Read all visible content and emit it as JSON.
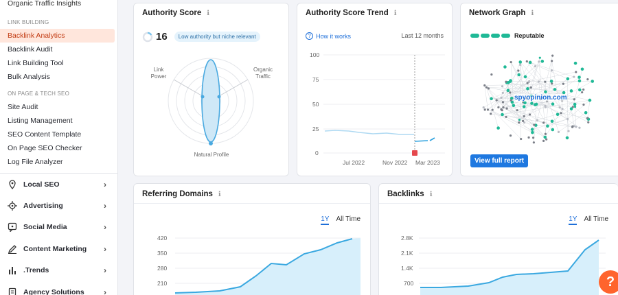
{
  "sidebar": {
    "top_item": "Organic Traffic Insights",
    "link_building_header": "LINK BUILDING",
    "link_building_items": [
      "Backlink Analytics",
      "Backlink Audit",
      "Link Building Tool",
      "Bulk Analysis"
    ],
    "onpage_header": "ON PAGE & TECH SEO",
    "onpage_items": [
      "Site Audit",
      "Listing Management",
      "SEO Content Template",
      "On Page SEO Checker",
      "Log File Analyzer"
    ],
    "main_items": [
      {
        "label": "Local SEO",
        "icon": "location-pin-icon"
      },
      {
        "label": "Advertising",
        "icon": "target-icon"
      },
      {
        "label": "Social Media",
        "icon": "chat-icon"
      },
      {
        "label": "Content Marketing",
        "icon": "pencil-icon"
      },
      {
        "label": ".Trends",
        "icon": "bar-chart-icon"
      },
      {
        "label": "Agency Solutions",
        "icon": "document-icon"
      }
    ]
  },
  "authority": {
    "title": "Authority Score",
    "score": "16",
    "badge": "Low authority but niche relevant",
    "label_link_power": "Link\nPower",
    "label_organic": "Organic\nTraffic",
    "label_natural": "Natural Profile"
  },
  "trend": {
    "title": "Authority Score Trend",
    "how_it_works": "How it works",
    "period": "Last 12 months",
    "y_ticks": [
      "100",
      "75",
      "50",
      "25",
      "0"
    ],
    "x_ticks": [
      "Jul 2022",
      "Nov 2022",
      "Mar 2023"
    ]
  },
  "network": {
    "title": "Network Graph",
    "status": "Reputable",
    "domain": "spyopinion.com",
    "button": "View full report"
  },
  "referring_domains": {
    "title": "Referring Domains",
    "toggle_1y": "1Y",
    "toggle_all": "All Time",
    "y_ticks": [
      "420",
      "350",
      "280",
      "210"
    ]
  },
  "backlinks": {
    "title": "Backlinks",
    "toggle_1y": "1Y",
    "toggle_all": "All Time",
    "y_ticks": [
      "2.8K",
      "2.1K",
      "1.4K",
      "700"
    ]
  },
  "help_button": "?",
  "colors": {
    "accent": "#ff642d",
    "blue": "#1e6fd9",
    "chart_line": "#3aa8e0",
    "chart_fill": "#d7effb",
    "green": "#1fb996",
    "red": "#e5484d"
  }
}
